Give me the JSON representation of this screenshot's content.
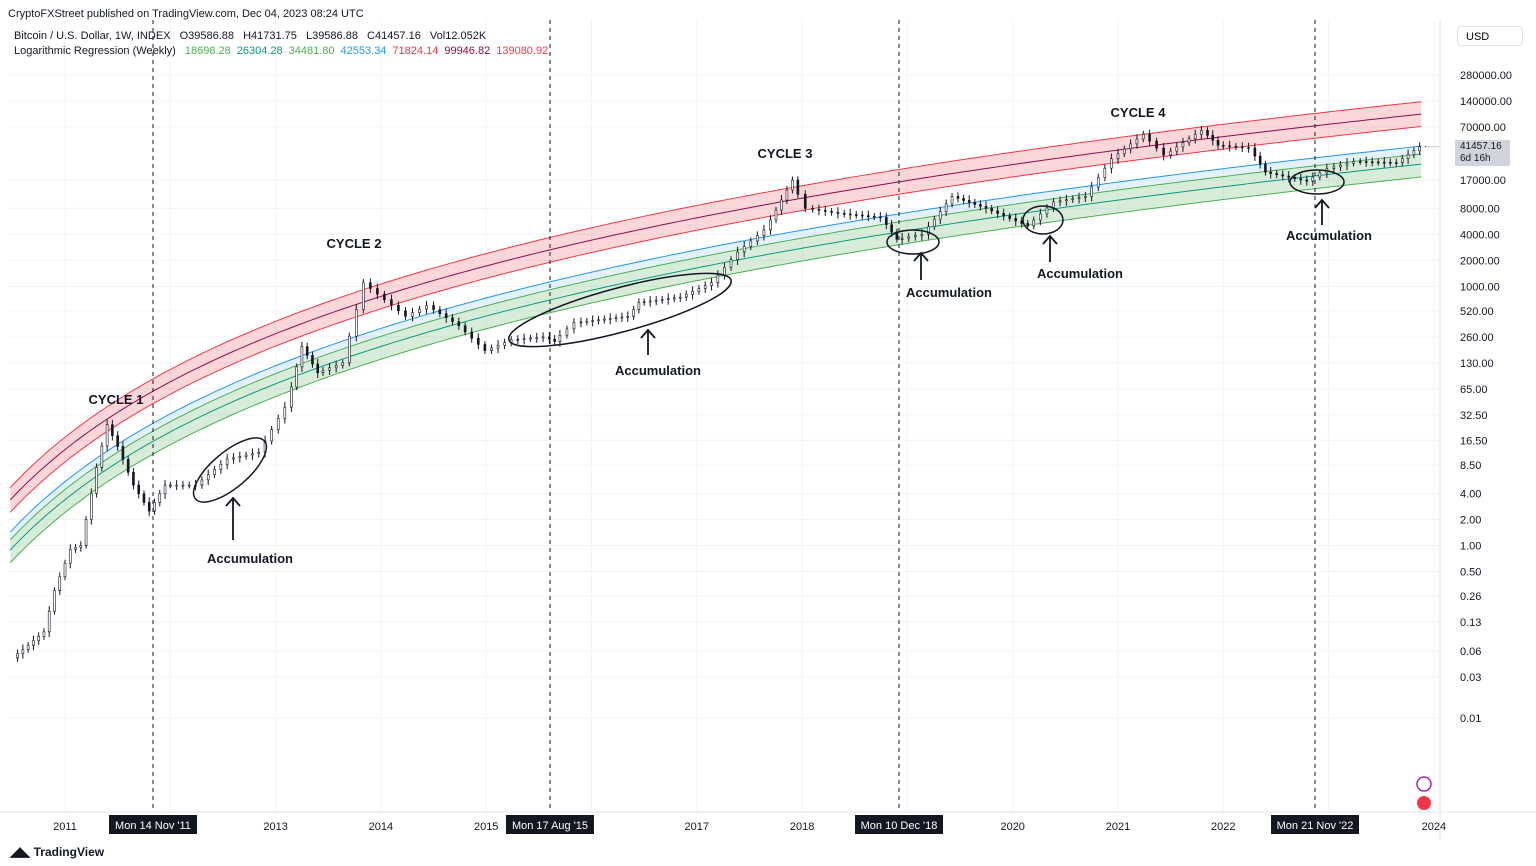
{
  "header": {
    "published": "CryptoFXStreet published on TradingView.com, Dec 04, 2023 08:24 UTC"
  },
  "legend": {
    "symbol": "Bitcoin / U.S. Dollar, 1W, INDEX",
    "open": "O39586.88",
    "high": "H41731.75",
    "low": "L39586.88",
    "close": "C41457.16",
    "volume": "Vol12.052K",
    "indicator": "Logarithmic Regression (Weekly)",
    "values": [
      {
        "text": "18698.28",
        "color": "#4caf50"
      },
      {
        "text": "26304.28",
        "color": "#089981"
      },
      {
        "text": "34481.80",
        "color": "#4caf50"
      },
      {
        "text": "42553.34",
        "color": "#2196f3"
      },
      {
        "text": "71824.14",
        "color": "#f23645"
      },
      {
        "text": "99946.82",
        "color": "#880e4f"
      },
      {
        "text": "139080.92",
        "color": "#f23645"
      }
    ]
  },
  "currency": "USD",
  "price_label": {
    "price": "41457.16",
    "countdown": "6d 16h"
  },
  "branding": "TradingView",
  "chart_data": {
    "type": "candlestick",
    "scale": "log",
    "y_ticks": [
      "280000.00",
      "140000.00",
      "70000.00",
      "17000.00",
      "8000.00",
      "4000.00",
      "2000.00",
      "1000.00",
      "520.00",
      "260.00",
      "130.00",
      "65.00",
      "32.50",
      "16.50",
      "8.50",
      "4.00",
      "2.00",
      "1.00",
      "0.50",
      "0.26",
      "0.13",
      "0.06",
      "0.03",
      "0.01"
    ],
    "x_ticks": [
      "2011",
      "2013",
      "2014",
      "2015",
      "2017",
      "2018",
      "2020",
      "2021",
      "2022",
      "2024"
    ],
    "price": [
      [
        2010.55,
        0.05
      ],
      [
        2010.7,
        0.07
      ],
      [
        2010.85,
        0.1
      ],
      [
        2010.95,
        0.3
      ],
      [
        2011.1,
        0.9
      ],
      [
        2011.2,
        1
      ],
      [
        2011.35,
        8
      ],
      [
        2011.45,
        25
      ],
      [
        2011.55,
        14
      ],
      [
        2011.7,
        5
      ],
      [
        2011.85,
        2.5
      ],
      [
        2012.0,
        5
      ],
      [
        2012.3,
        5
      ],
      [
        2012.6,
        10
      ],
      [
        2012.9,
        12
      ],
      [
        2013.15,
        40
      ],
      [
        2013.3,
        200
      ],
      [
        2013.45,
        100
      ],
      [
        2013.7,
        130
      ],
      [
        2013.9,
        1100
      ],
      [
        2014.1,
        700
      ],
      [
        2014.3,
        450
      ],
      [
        2014.5,
        600
      ],
      [
        2014.8,
        350
      ],
      [
        2015.05,
        180
      ],
      [
        2015.3,
        240
      ],
      [
        2015.6,
        260
      ],
      [
        2015.7,
        230
      ],
      [
        2015.9,
        380
      ],
      [
        2016.4,
        450
      ],
      [
        2016.5,
        650
      ],
      [
        2016.9,
        750
      ],
      [
        2017.2,
        1100
      ],
      [
        2017.45,
        2500
      ],
      [
        2017.7,
        4500
      ],
      [
        2017.96,
        17000
      ],
      [
        2018.1,
        8000
      ],
      [
        2018.4,
        7000
      ],
      [
        2018.8,
        6300
      ],
      [
        2018.95,
        3500
      ],
      [
        2019.2,
        4000
      ],
      [
        2019.48,
        11000
      ],
      [
        2019.8,
        8000
      ],
      [
        2020.2,
        5000
      ],
      [
        2020.45,
        9500
      ],
      [
        2020.75,
        11000
      ],
      [
        2021.0,
        30000
      ],
      [
        2021.3,
        58000
      ],
      [
        2021.5,
        33000
      ],
      [
        2021.85,
        64000
      ],
      [
        2022.0,
        43000
      ],
      [
        2022.3,
        40000
      ],
      [
        2022.45,
        21000
      ],
      [
        2022.85,
        16500
      ],
      [
        2023.05,
        23000
      ],
      [
        2023.3,
        28000
      ],
      [
        2023.7,
        27000
      ],
      [
        2023.92,
        41457.16
      ]
    ],
    "regression_bands_current": [
      {
        "value": 18698.28,
        "color": "#4caf50"
      },
      {
        "value": 26304.28,
        "color": "#089981"
      },
      {
        "value": 34481.8,
        "color": "#4caf50"
      },
      {
        "value": 42553.34,
        "color": "#2196f3"
      },
      {
        "value": 71824.14,
        "color": "#f23645"
      },
      {
        "value": 99946.82,
        "color": "#880e4f"
      },
      {
        "value": 139080.92,
        "color": "#f23645"
      }
    ],
    "cycles": [
      "CYCLE 1",
      "CYCLE 2",
      "CYCLE 3",
      "CYCLE 4"
    ],
    "accumulation_label": "Accumulation",
    "markers": [
      "Mon 14 Nov '11",
      "Mon 17 Aug '15",
      "Mon 10 Dec '18",
      "Mon 21 Nov '22"
    ]
  }
}
